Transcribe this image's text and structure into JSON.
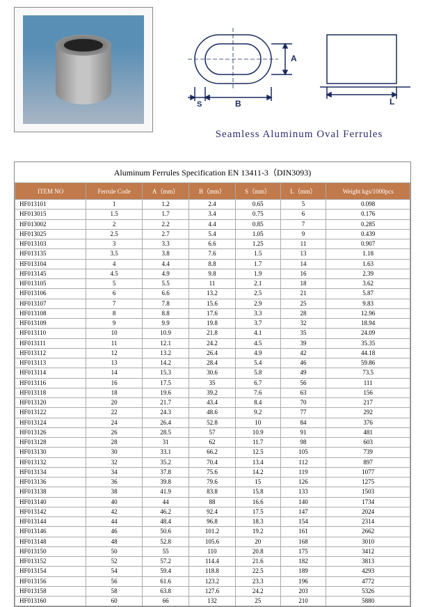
{
  "caption": "Seamless Aluminum Oval Ferrules",
  "diagram": {
    "labels": {
      "A": "A",
      "B": "B",
      "S": "S",
      "L": "L"
    },
    "stroke": "#1a2a5e"
  },
  "photo_frame": {
    "border_color": "#888888",
    "bg_gradient_top": "#5a8fb5",
    "bg_gradient_bottom": "#a8b5c4"
  },
  "table": {
    "title": "Aluminum Ferrules Specification EN 13411-3（DIN3093)",
    "header_bg": "#c17a4b",
    "header_fg": "#ffffff",
    "columns": [
      "ITEM NO",
      "Ferrule Code",
      "A（mm）",
      "B（mm）",
      "S（mm）",
      "L（mm）",
      "Weight kgs/1000pcs"
    ],
    "rows": [
      [
        "HF013101",
        "1",
        "1.2",
        "2.4",
        "0.65",
        "5",
        "0.098"
      ],
      [
        "HF013015",
        "1.5",
        "1.7",
        "3.4",
        "0.75",
        "6",
        "0.176"
      ],
      [
        "HF013002",
        "2",
        "2.2",
        "4.4",
        "0.85",
        "7",
        "0.285"
      ],
      [
        "HF013025",
        "2.5",
        "2.7",
        "5.4",
        "1.05",
        "9",
        "0.439"
      ],
      [
        "HF013103",
        "3",
        "3.3",
        "6.6",
        "1.25",
        "11",
        "0.907"
      ],
      [
        "HF013135",
        "3.5",
        "3.8",
        "7.6",
        "1.5",
        "13",
        "1.18"
      ],
      [
        "HF013104",
        "4",
        "4.4",
        "8.8",
        "1.7",
        "14",
        "1.63"
      ],
      [
        "HF013145",
        "4.5",
        "4.9",
        "9.8",
        "1.9",
        "16",
        "2.39"
      ],
      [
        "HF013105",
        "5",
        "5.5",
        "11",
        "2.1",
        "18",
        "3.62"
      ],
      [
        "HF013106",
        "6",
        "6.6",
        "13.2",
        "2.5",
        "21",
        "5.87"
      ],
      [
        "HF013107",
        "7",
        "7.8",
        "15.6",
        "2.9",
        "25",
        "9.83"
      ],
      [
        "HF013108",
        "8",
        "8.8",
        "17.6",
        "3.3",
        "28",
        "12.96"
      ],
      [
        "HF013109",
        "9",
        "9.9",
        "19.8",
        "3.7",
        "32",
        "18.94"
      ],
      [
        "HF013110",
        "10",
        "10.9",
        "21.8",
        "4.1",
        "35",
        "24.09"
      ],
      [
        "HF013111",
        "11",
        "12.1",
        "24.2",
        "4.5",
        "39",
        "35.35"
      ],
      [
        "HF013112",
        "12",
        "13.2",
        "26.4",
        "4.9",
        "42",
        "44.18"
      ],
      [
        "HF013113",
        "13",
        "14.2",
        "28.4",
        "5.4",
        "46",
        "59.86"
      ],
      [
        "HF013114",
        "14",
        "15.3",
        "30.6",
        "5.8",
        "49",
        "73.5"
      ],
      [
        "HF013116",
        "16",
        "17.5",
        "35",
        "6.7",
        "56",
        "111"
      ],
      [
        "HF013118",
        "18",
        "19.6",
        "39.2",
        "7.6",
        "63",
        "156"
      ],
      [
        "HF013120",
        "20",
        "21.7",
        "43.4",
        "8.4",
        "70",
        "217"
      ],
      [
        "HF013122",
        "22",
        "24.3",
        "48.6",
        "9.2",
        "77",
        "292"
      ],
      [
        "HF013124",
        "24",
        "26.4",
        "52.8",
        "10",
        "84",
        "376"
      ],
      [
        "HF013126",
        "26",
        "28.5",
        "57",
        "10.9",
        "91",
        "481"
      ],
      [
        "HF013128",
        "28",
        "31",
        "62",
        "11.7",
        "98",
        "603"
      ],
      [
        "HF013130",
        "30",
        "33.1",
        "66.2",
        "12.5",
        "105",
        "739"
      ],
      [
        "HF013132",
        "32",
        "35.2",
        "70.4",
        "13.4",
        "112",
        "897"
      ],
      [
        "HF013134",
        "34",
        "37.8",
        "75.6",
        "14.2",
        "119",
        "1077"
      ],
      [
        "HF013136",
        "36",
        "39.8",
        "79.6",
        "15",
        "126",
        "1275"
      ],
      [
        "HF013138",
        "38",
        "41.9",
        "83.8",
        "15.8",
        "133",
        "1503"
      ],
      [
        "HF013140",
        "40",
        "44",
        "88",
        "16.6",
        "140",
        "1734"
      ],
      [
        "HF013142",
        "42",
        "46.2",
        "92.4",
        "17.5",
        "147",
        "2024"
      ],
      [
        "HF013144",
        "44",
        "48.4",
        "96.8",
        "18.3",
        "154",
        "2314"
      ],
      [
        "HF013146",
        "46",
        "50.6",
        "101.2",
        "19.2",
        "161",
        "2662"
      ],
      [
        "HF013148",
        "48",
        "52.8",
        "105.6",
        "20",
        "168",
        "3010"
      ],
      [
        "HF013150",
        "50",
        "55",
        "110",
        "20.8",
        "175",
        "3412"
      ],
      [
        "HF013152",
        "52",
        "57.2",
        "114.4",
        "21.6",
        "182",
        "3813"
      ],
      [
        "HF013154",
        "54",
        "59.4",
        "118.8",
        "22.5",
        "189",
        "4293"
      ],
      [
        "HF013156",
        "56",
        "61.6",
        "123.2",
        "23.3",
        "196",
        "4772"
      ],
      [
        "HF013158",
        "58",
        "63.8",
        "127.6",
        "24.2",
        "203",
        "5326"
      ],
      [
        "HF013160",
        "60",
        "66",
        "132",
        "25",
        "210",
        "5880"
      ]
    ]
  }
}
